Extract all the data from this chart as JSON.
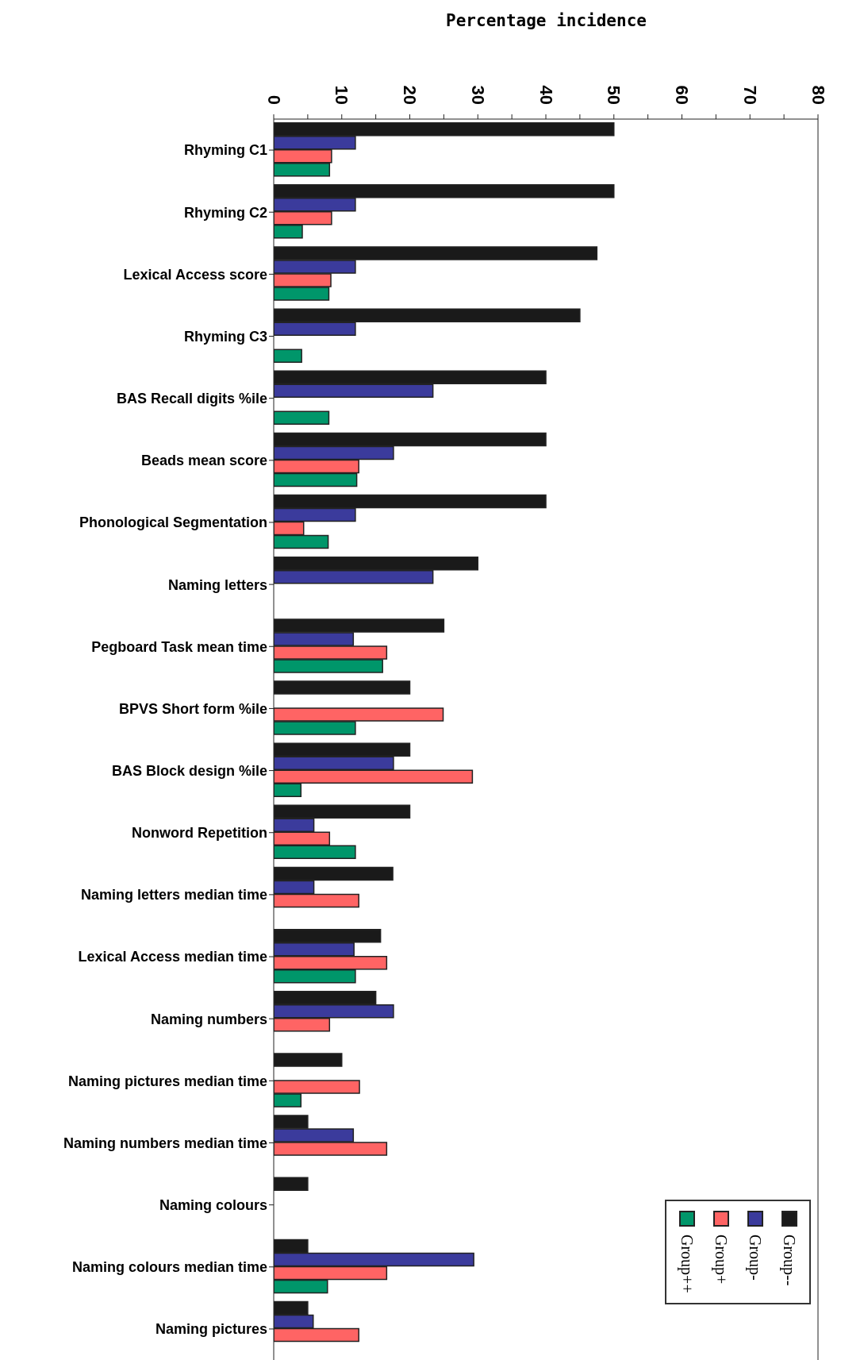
{
  "chart_data": {
    "type": "bar",
    "orientation": "horizontal",
    "xlabel": "Percentage incidence",
    "categories": [
      "Rhyming C1",
      "Rhyming C2",
      "Lexical Access score",
      "Rhyming C3",
      "BAS Recall digits %ile",
      "Beads mean score",
      "Phonological Segmentation",
      "Naming letters",
      "Pegboard Task mean time",
      "BPVS Short form %ile",
      "BAS Block design %ile",
      "Nonword Repetition",
      "Naming letters median time",
      "Lexical Access median time",
      "Naming numbers",
      "Naming pictures median time",
      "Naming numbers median time",
      "Naming colours",
      "Naming colours median time",
      "Naming pictures"
    ],
    "series": [
      {
        "name": "Group--",
        "color": "#1a1a1a",
        "values": [
          50,
          50,
          47.5,
          45,
          40,
          40,
          40,
          30,
          25,
          20,
          20,
          20,
          17.5,
          15.7,
          15,
          10,
          5,
          5,
          5,
          5
        ]
      },
      {
        "name": "Group-",
        "color": "#3b3b9c",
        "values": [
          12,
          12,
          12,
          12,
          23.4,
          17.6,
          12,
          23.4,
          11.7,
          null,
          17.6,
          5.9,
          5.9,
          11.8,
          17.6,
          null,
          11.7,
          null,
          29.4,
          5.8
        ]
      },
      {
        "name": "Group+",
        "color": "#ff6464",
        "values": [
          8.5,
          8.5,
          8.4,
          null,
          null,
          12.5,
          4.4,
          null,
          16.6,
          24.9,
          29.2,
          8.2,
          12.5,
          16.6,
          8.2,
          12.6,
          16.6,
          null,
          16.6,
          12.5
        ]
      },
      {
        "name": "Group++",
        "color": "#00966a",
        "values": [
          8.2,
          4.2,
          8.1,
          4.1,
          8.1,
          12.2,
          8,
          null,
          16,
          12,
          4,
          12,
          null,
          12,
          null,
          4,
          null,
          null,
          7.9,
          null
        ]
      }
    ],
    "xlim": [
      0,
      80
    ],
    "xticks": [
      0,
      {
        "value": 5,
        "label": null
      },
      10,
      {
        "value": 15,
        "label": null
      },
      20,
      {
        "value": 25,
        "label": null
      },
      30,
      {
        "value": 35,
        "label": null
      },
      40,
      {
        "value": 45,
        "label": null
      },
      50,
      {
        "value": 55,
        "label": null
      },
      60,
      {
        "value": 65,
        "label": null
      },
      70,
      {
        "value": 75,
        "label": null
      },
      80
    ],
    "legend": "bottom right"
  }
}
